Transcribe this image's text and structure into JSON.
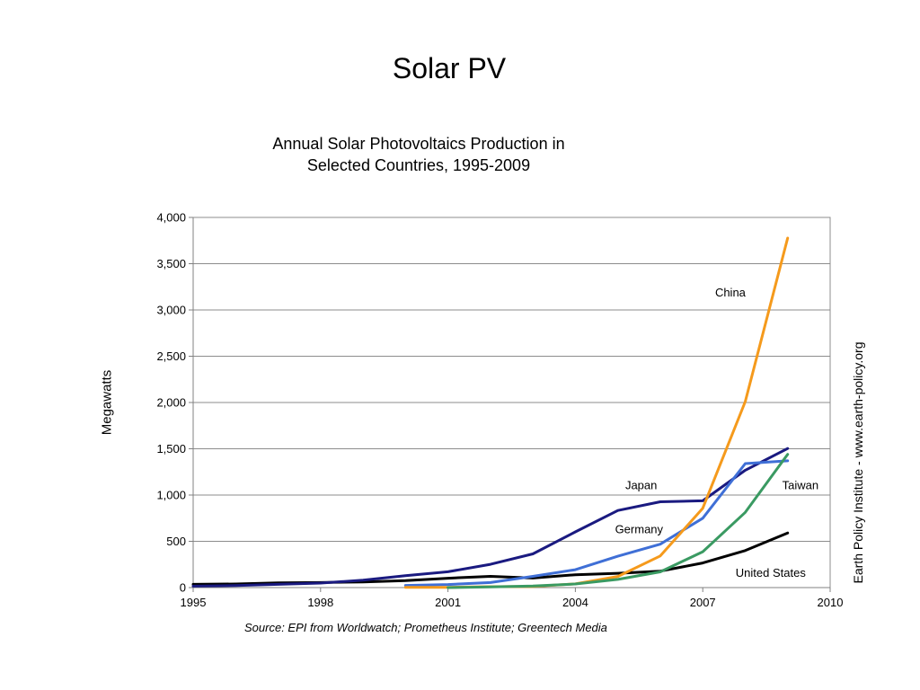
{
  "slide": {
    "title": "Solar PV"
  },
  "credit": "Earth Policy Institute - www.earth-policy.org",
  "source": "Source: EPI from Worldwatch; Prometheus Institute; Greentech Media",
  "chart_data": {
    "type": "line",
    "title_lines": [
      "Annual Solar Photovoltaics Production in",
      "Selected Countries, 1995-2009"
    ],
    "xlabel": "",
    "ylabel": "Megawatts",
    "xlim": [
      1995,
      2010
    ],
    "ylim": [
      0,
      4000
    ],
    "x_ticks": [
      1995,
      1998,
      2001,
      2004,
      2007,
      2010
    ],
    "x_tick_labels": [
      "1995",
      "1998",
      "2001",
      "2004",
      "2007",
      "2010"
    ],
    "y_ticks": [
      0,
      500,
      1000,
      1500,
      2000,
      2500,
      3000,
      3500,
      4000
    ],
    "y_tick_labels": [
      "0",
      "500",
      "1,000",
      "1,500",
      "2,000",
      "2,500",
      "3,000",
      "3,500",
      "4,000"
    ],
    "grid": "horizontal",
    "legend": "inline labels",
    "series": [
      {
        "name": "United States",
        "color": "#000000",
        "label_at": [
          2008.6,
          160
        ],
        "points": [
          [
            1995,
            35
          ],
          [
            1996,
            39
          ],
          [
            1997,
            51
          ],
          [
            1998,
            54
          ],
          [
            1999,
            61
          ],
          [
            2000,
            75
          ],
          [
            2001,
            101
          ],
          [
            2002,
            121
          ],
          [
            2003,
            103
          ],
          [
            2004,
            139
          ],
          [
            2005,
            154
          ],
          [
            2006,
            178
          ],
          [
            2007,
            266
          ],
          [
            2008,
            400
          ],
          [
            2009,
            590
          ]
        ]
      },
      {
        "name": "Japan",
        "color": "#1a1a80",
        "label_at": [
          2005.55,
          1105
        ],
        "points": [
          [
            1995,
            16
          ],
          [
            1996,
            21
          ],
          [
            1997,
            35
          ],
          [
            1998,
            49
          ],
          [
            1999,
            80
          ],
          [
            2000,
            129
          ],
          [
            2001,
            171
          ],
          [
            2002,
            251
          ],
          [
            2003,
            364
          ],
          [
            2004,
            602
          ],
          [
            2005,
            833
          ],
          [
            2006,
            927
          ],
          [
            2007,
            938
          ],
          [
            2008,
            1268
          ],
          [
            2009,
            1503
          ]
        ]
      },
      {
        "name": "Germany",
        "color": "#3f6fd6",
        "label_at": [
          2005.5,
          630
        ],
        "points": [
          [
            2000,
            23
          ],
          [
            2001,
            33
          ],
          [
            2002,
            54
          ],
          [
            2003,
            121
          ],
          [
            2004,
            193
          ],
          [
            2005,
            339
          ],
          [
            2006,
            469
          ],
          [
            2007,
            750
          ],
          [
            2008,
            1340
          ],
          [
            2009,
            1370
          ]
        ]
      },
      {
        "name": "China",
        "color": "#f59a1c",
        "label_at": [
          2007.65,
          3190
        ],
        "points": [
          [
            2000,
            3
          ],
          [
            2001,
            3
          ],
          [
            2002,
            10
          ],
          [
            2003,
            13
          ],
          [
            2004,
            40
          ],
          [
            2005,
            120
          ],
          [
            2006,
            342
          ],
          [
            2007,
            857
          ],
          [
            2008,
            2010
          ],
          [
            2009,
            3777
          ]
        ]
      },
      {
        "name": "Taiwan",
        "color": "#3a9a62",
        "label_at": [
          2009.3,
          1105
        ],
        "points": [
          [
            2001,
            0
          ],
          [
            2002,
            7
          ],
          [
            2003,
            17
          ],
          [
            2004,
            39
          ],
          [
            2005,
            88
          ],
          [
            2006,
            170
          ],
          [
            2007,
            387
          ],
          [
            2008,
            813
          ],
          [
            2009,
            1440
          ]
        ]
      }
    ]
  }
}
